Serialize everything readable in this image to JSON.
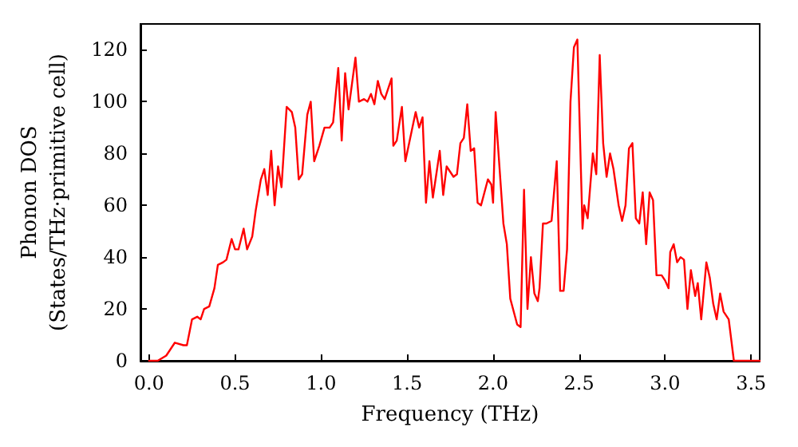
{
  "chart_data": {
    "type": "line",
    "xlabel": "Frequency (THz)",
    "ylabel": "Phonon DOS\n(States/THz·primitive cell)",
    "xlim": [
      -0.05,
      3.55
    ],
    "xticks": [
      {
        "value": 0,
        "label": "0.0"
      },
      0.5,
      {
        "value": 1,
        "label": "1.0"
      },
      1.5,
      {
        "value": 2,
        "label": "2.0"
      },
      2.5,
      {
        "value": 3,
        "label": "3.0"
      },
      3.5
    ],
    "ylim": [
      0,
      130
    ],
    "yticks": [
      0,
      20,
      40,
      60,
      80,
      100,
      120
    ],
    "grid": false,
    "marker": "none",
    "line_style": "solid",
    "series": [
      {
        "color": "#ff0000",
        "x": [
          0,
          0.05,
          0.1,
          0.15,
          0.2,
          0.22,
          0.25,
          0.28,
          0.3,
          0.32,
          0.35,
          0.38,
          0.4,
          0.43,
          0.45,
          0.48,
          0.5,
          0.52,
          0.55,
          0.57,
          0.6,
          0.62,
          0.65,
          0.67,
          0.69,
          0.71,
          0.73,
          0.75,
          0.77,
          0.8,
          0.83,
          0.85,
          0.87,
          0.89,
          0.92,
          0.94,
          0.96,
          0.99,
          1.02,
          1.05,
          1.07,
          1.1,
          1.12,
          1.14,
          1.16,
          1.2,
          1.22,
          1.25,
          1.27,
          1.29,
          1.31,
          1.33,
          1.35,
          1.37,
          1.41,
          1.42,
          1.44,
          1.47,
          1.49,
          1.55,
          1.57,
          1.59,
          1.61,
          1.63,
          1.65,
          1.69,
          1.71,
          1.73,
          1.77,
          1.79,
          1.81,
          1.83,
          1.85,
          1.87,
          1.89,
          1.91,
          1.93,
          1.97,
          1.99,
          2.0,
          2.015,
          2.06,
          2.08,
          2.1,
          2.14,
          2.16,
          2.18,
          2.2,
          2.22,
          2.24,
          2.26,
          2.27,
          2.29,
          2.31,
          2.34,
          2.37,
          2.39,
          2.41,
          2.43,
          2.45,
          2.47,
          2.49,
          2.52,
          2.53,
          2.55,
          2.58,
          2.6,
          2.62,
          2.64,
          2.66,
          2.68,
          2.7,
          2.73,
          2.75,
          2.77,
          2.79,
          2.81,
          2.83,
          2.85,
          2.87,
          2.89,
          2.91,
          2.93,
          2.95,
          2.98,
          3.0,
          3.02,
          3.03,
          3.05,
          3.07,
          3.09,
          3.11,
          3.13,
          3.15,
          3.175,
          3.19,
          3.21,
          3.24,
          3.26,
          3.28,
          3.3,
          3.32,
          3.34,
          3.37,
          3.4,
          3.55
        ],
        "values": [
          0,
          0,
          2,
          7,
          6,
          6,
          16,
          17,
          16,
          20,
          21,
          28,
          37,
          38,
          39,
          47,
          43,
          43,
          51,
          43,
          48,
          58,
          70,
          74,
          64,
          81,
          60,
          75,
          67,
          98,
          96,
          90,
          70,
          72,
          95,
          100,
          77,
          83,
          90,
          90,
          92,
          113,
          85,
          111,
          97,
          117,
          100,
          101,
          100,
          103,
          99,
          108,
          103,
          101,
          109,
          83,
          85,
          98,
          77,
          96,
          90,
          94,
          61,
          77,
          63,
          81,
          64,
          75,
          71,
          72,
          84,
          86,
          99,
          81,
          82,
          61,
          60,
          70,
          68,
          61,
          96,
          53,
          45,
          24,
          14,
          13,
          66,
          20,
          40,
          26,
          23,
          28,
          53,
          53,
          54,
          77,
          27,
          27,
          43,
          100,
          121,
          124,
          51,
          60,
          55,
          80,
          72,
          118,
          84,
          71,
          80,
          74,
          60,
          54,
          60,
          82,
          84,
          55,
          53,
          65,
          45,
          65,
          62,
          33,
          33,
          31,
          28,
          42,
          45,
          38,
          40,
          39,
          20,
          35,
          25,
          30,
          16,
          38,
          32,
          22,
          16,
          26,
          19,
          16,
          0,
          0
        ]
      }
    ]
  }
}
